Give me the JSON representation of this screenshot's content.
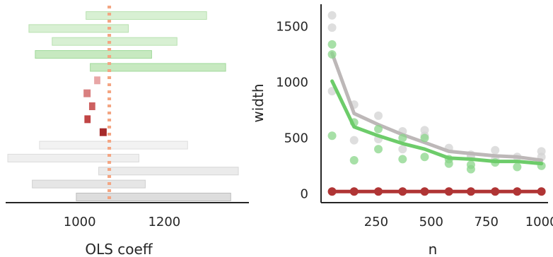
{
  "chart_data": [
    {
      "type": "interval",
      "xlabel": "OLS coeff",
      "ylabel": "",
      "xlim": [
        825,
        1400
      ],
      "xticks": [
        1000,
        1200
      ],
      "reference_line": {
        "x": 1070,
        "color": "#f4a582",
        "style": "dotted"
      },
      "intervals": [
        {
          "lo": 1015,
          "hi": 1300,
          "color": "#d8f0d3",
          "edge": "#b9e1b1"
        },
        {
          "lo": 880,
          "hi": 1115,
          "color": "#d8f0d3",
          "edge": "#b9e1b1"
        },
        {
          "lo": 935,
          "hi": 1230,
          "color": "#d8f0d3",
          "edge": "#b9e1b1"
        },
        {
          "lo": 895,
          "hi": 1170,
          "color": "#c7e9c0",
          "edge": "#a1d99b"
        },
        {
          "lo": 1025,
          "hi": 1345,
          "color": "#c7e9c0",
          "edge": "#a1d99b"
        },
        {
          "lo": 1035,
          "hi": 1048,
          "color": "#e8a6a6",
          "edge": "#e8a6a6"
        },
        {
          "lo": 1010,
          "hi": 1025,
          "color": "#d98080",
          "edge": "#d98080"
        },
        {
          "lo": 1023,
          "hi": 1036,
          "color": "#cd6060",
          "edge": "#cd6060"
        },
        {
          "lo": 1012,
          "hi": 1025,
          "color": "#c04545",
          "edge": "#c04545"
        },
        {
          "lo": 1048,
          "hi": 1063,
          "color": "#a62a2a",
          "edge": "#a62a2a"
        },
        {
          "lo": 905,
          "hi": 1255,
          "color": "#f2f2f2",
          "edge": "#dedede"
        },
        {
          "lo": 830,
          "hi": 1140,
          "color": "#efefef",
          "edge": "#dcdcdc"
        },
        {
          "lo": 1045,
          "hi": 1375,
          "color": "#ebebeb",
          "edge": "#d6d6d6"
        },
        {
          "lo": 888,
          "hi": 1155,
          "color": "#e6e6e6",
          "edge": "#cfcfcf"
        },
        {
          "lo": 992,
          "hi": 1357,
          "color": "#dddddd",
          "edge": "#bdbdbd"
        }
      ]
    },
    {
      "type": "line",
      "xlabel": "n",
      "ylabel": "width",
      "xlim": [
        0,
        1030
      ],
      "ylim": [
        -80,
        1700
      ],
      "xticks": [
        250,
        500,
        750,
        1000
      ],
      "yticks": [
        0,
        500,
        1000,
        1500
      ],
      "series": [
        {
          "color": "#bdb8b8",
          "point_color": "#d3d3d3",
          "x": [
            50,
            150,
            260,
            370,
            470,
            580,
            680,
            790,
            890,
            1000
          ],
          "y": [
            1260,
            720,
            620,
            530,
            460,
            380,
            360,
            340,
            330,
            300
          ],
          "points": [
            [
              50,
              1600
            ],
            [
              50,
              1490
            ],
            [
              50,
              920
            ],
            [
              150,
              800
            ],
            [
              150,
              480
            ],
            [
              260,
              700
            ],
            [
              260,
              490
            ],
            [
              370,
              560
            ],
            [
              370,
              400
            ],
            [
              470,
              570
            ],
            [
              470,
              520
            ],
            [
              580,
              410
            ],
            [
              680,
              350
            ],
            [
              680,
              330
            ],
            [
              790,
              390
            ],
            [
              790,
              310
            ],
            [
              890,
              330
            ],
            [
              1000,
              380
            ],
            [
              1000,
              330
            ]
          ]
        },
        {
          "color": "#6dcc6a",
          "point_color": "#8ad68a",
          "x": [
            50,
            150,
            260,
            370,
            470,
            580,
            680,
            790,
            890,
            1000
          ],
          "y": [
            1010,
            600,
            520,
            450,
            400,
            320,
            310,
            290,
            290,
            270
          ],
          "points": [
            [
              50,
              1340
            ],
            [
              50,
              1250
            ],
            [
              50,
              520
            ],
            [
              150,
              300
            ],
            [
              150,
              640
            ],
            [
              260,
              400
            ],
            [
              260,
              580
            ],
            [
              370,
              310
            ],
            [
              370,
              500
            ],
            [
              470,
              330
            ],
            [
              470,
              500
            ],
            [
              580,
              270
            ],
            [
              580,
              310
            ],
            [
              680,
              220
            ],
            [
              680,
              260
            ],
            [
              790,
              280
            ],
            [
              890,
              240
            ],
            [
              1000,
              250
            ]
          ]
        },
        {
          "color": "#b03535",
          "point_color": "#b03535",
          "x": [
            50,
            150,
            260,
            370,
            470,
            580,
            680,
            790,
            890,
            1000
          ],
          "y": [
            20,
            20,
            20,
            20,
            20,
            20,
            20,
            20,
            20,
            20
          ],
          "points": [
            [
              50,
              20
            ],
            [
              150,
              20
            ],
            [
              260,
              20
            ],
            [
              370,
              20
            ],
            [
              470,
              20
            ],
            [
              580,
              20
            ],
            [
              680,
              20
            ],
            [
              790,
              20
            ],
            [
              890,
              20
            ],
            [
              1000,
              20
            ]
          ]
        }
      ]
    }
  ]
}
